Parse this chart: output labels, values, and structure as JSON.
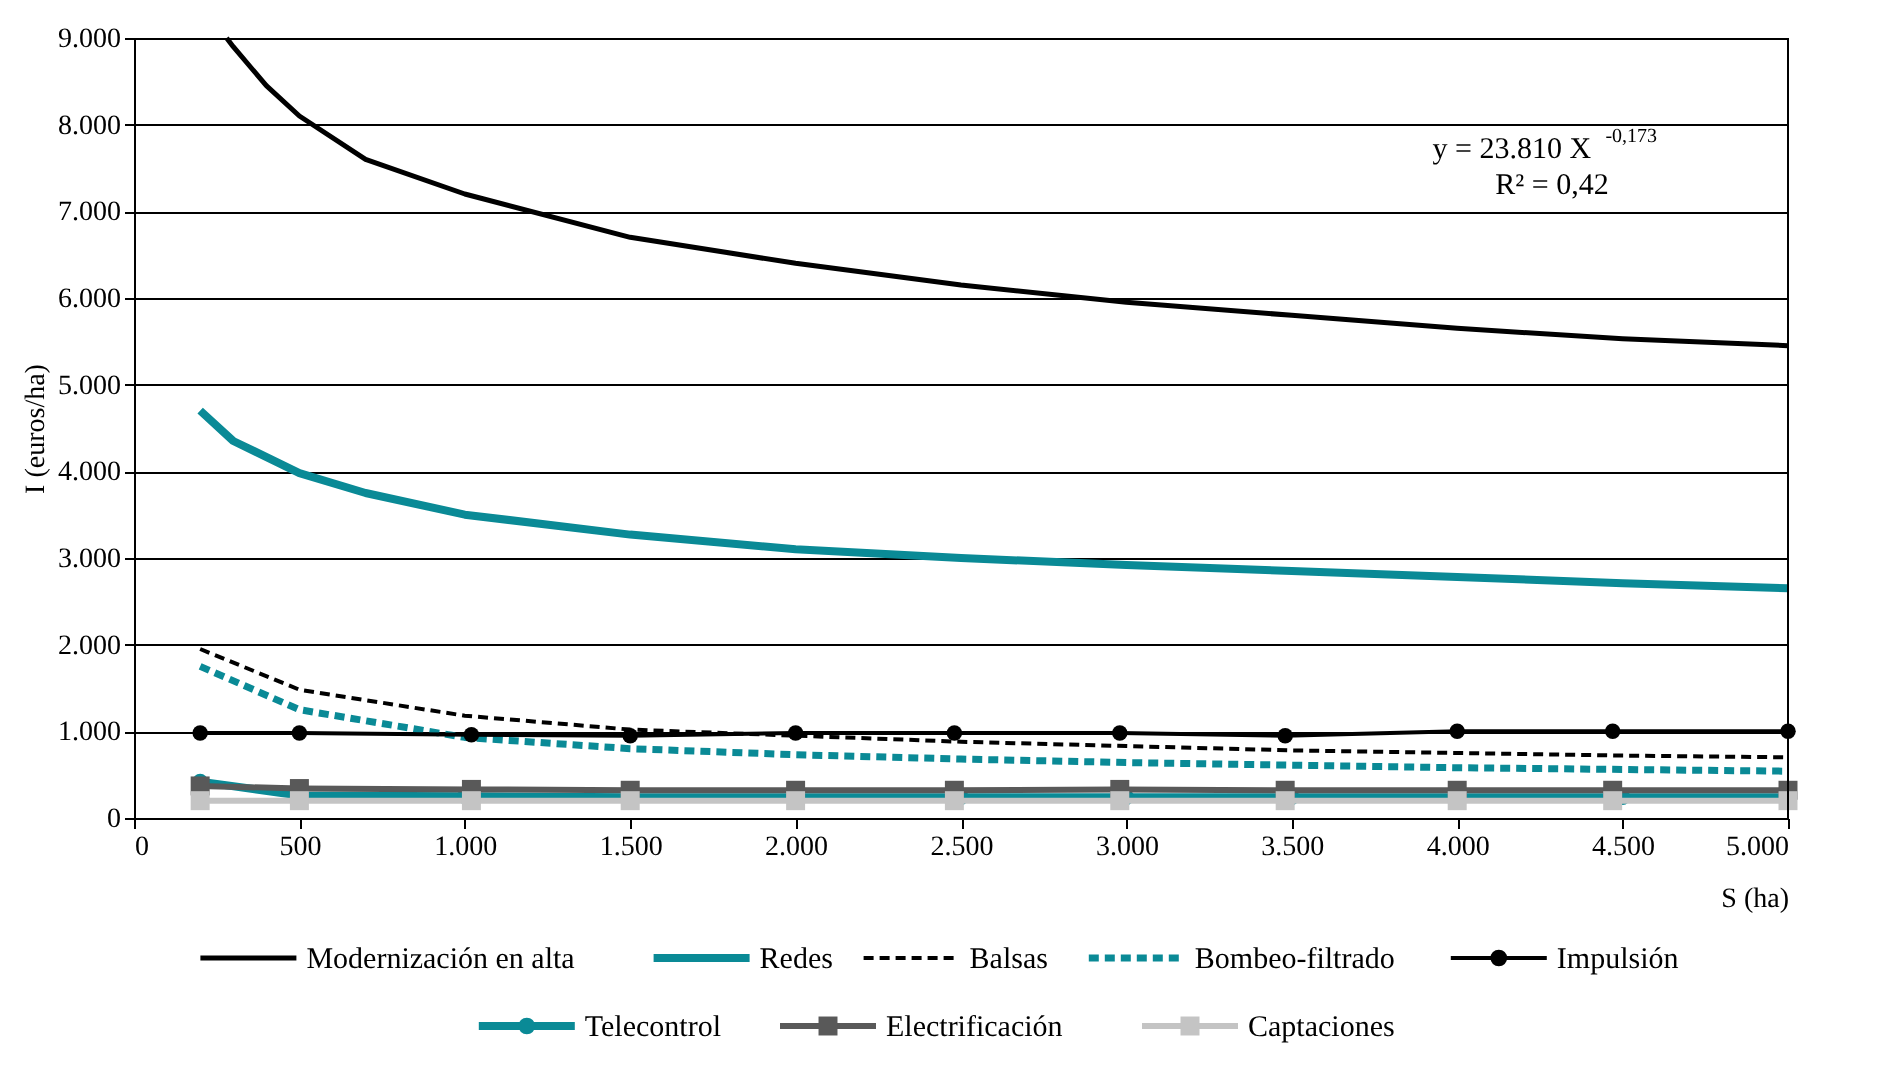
{
  "chart_data": {
    "type": "line",
    "xlabel": "S (ha)",
    "ylabel": "I (euros/ha)",
    "xlim": [
      0,
      5000
    ],
    "ylim": [
      0,
      9000
    ],
    "xticks": [
      0,
      {
        "value": 500,
        "label": "500"
      },
      {
        "value": 1000,
        "label": "1.000"
      },
      {
        "value": 1500,
        "label": "1.500"
      },
      {
        "value": 2000,
        "label": "2.000"
      },
      {
        "value": 2500,
        "label": "2.500"
      },
      {
        "value": 3000,
        "label": "3.000"
      },
      {
        "value": 3500,
        "label": "3.500"
      },
      {
        "value": 4000,
        "label": "4.000"
      },
      {
        "value": 4500,
        "label": "4.500"
      },
      {
        "value": 5000,
        "label": "5.000"
      }
    ],
    "yticks": [
      0,
      {
        "value": 1000,
        "label": "1.000"
      },
      {
        "value": 2000,
        "label": "2.000"
      },
      {
        "value": 3000,
        "label": "3.000"
      },
      {
        "value": 4000,
        "label": "4.000"
      },
      {
        "value": 5000,
        "label": "5.000"
      },
      {
        "value": 6000,
        "label": "6.000"
      },
      {
        "value": 7000,
        "label": "7.000"
      },
      {
        "value": 8000,
        "label": "8.000"
      },
      {
        "value": 9000,
        "label": "9.000"
      }
    ],
    "grid": "y",
    "legend": "bottom",
    "annotations": [
      "y = 23.810 X$^{-0,173}$",
      "R² = 0,42"
    ],
    "series": [
      {
        "name": "Modernización en alta",
        "color": "#000000",
        "line_style": "solid",
        "marker": "none",
        "x": [
          280,
          300,
          400,
          500,
          700,
          1000,
          1500,
          2000,
          2500,
          3000,
          3500,
          4000,
          4500,
          5000
        ],
        "values": [
          9000,
          8900,
          8450,
          8100,
          7600,
          7200,
          6700,
          6400,
          6150,
          5950,
          5800,
          5650,
          5530,
          5450
        ]
      },
      {
        "name": "Redes",
        "color": "#0a8a96",
        "line_style": "solid",
        "marker": "none",
        "x": [
          200,
          300,
          500,
          700,
          1000,
          1500,
          2000,
          2500,
          3000,
          3500,
          4000,
          4500,
          5000
        ],
        "values": [
          4700,
          4350,
          3980,
          3750,
          3500,
          3270,
          3100,
          3000,
          2920,
          2850,
          2780,
          2710,
          2650
        ]
      },
      {
        "name": "Balsas",
        "color": "#000000",
        "line_style": "dashed",
        "marker": "none",
        "x": [
          200,
          500,
          1000,
          1500,
          2000,
          2500,
          3000,
          3500,
          4000,
          4500,
          5000
        ],
        "values": [
          1950,
          1480,
          1180,
          1020,
          950,
          880,
          830,
          780,
          750,
          720,
          700
        ]
      },
      {
        "name": "Bombeo-filtrado",
        "color": "#0a8a96",
        "line_style": "dashed",
        "marker": "none",
        "x": [
          200,
          500,
          1000,
          1500,
          2000,
          2500,
          3000,
          3500,
          4000,
          4500,
          5000
        ],
        "values": [
          1750,
          1250,
          930,
          800,
          730,
          680,
          640,
          610,
          580,
          560,
          540
        ]
      },
      {
        "name": "Impulsión",
        "color": "#000000",
        "line_style": "solid",
        "marker": "circle",
        "x": [
          200,
          500,
          1020,
          1500,
          2000,
          2480,
          2980,
          3480,
          4000,
          4470,
          5000
        ],
        "values": [
          980,
          980,
          960,
          950,
          980,
          980,
          980,
          950,
          1000,
          1000,
          1000
        ]
      },
      {
        "name": "Telecontrol",
        "color": "#0a8a96",
        "line_style": "solid",
        "marker": "circle",
        "x": [
          200,
          500,
          1000,
          1500,
          2000,
          2500,
          3000,
          3500,
          4000,
          4500,
          5000
        ],
        "values": [
          420,
          260,
          250,
          240,
          240,
          240,
          240,
          240,
          240,
          240,
          240
        ]
      },
      {
        "name": "Electrificación",
        "color": "#595959",
        "line_style": "solid",
        "marker": "square",
        "x": [
          200,
          500,
          1020,
          1500,
          2000,
          2480,
          2980,
          3480,
          4000,
          4470,
          5000
        ],
        "values": [
          370,
          340,
          330,
          320,
          320,
          320,
          330,
          320,
          320,
          320,
          320
        ]
      },
      {
        "name": "Captaciones",
        "color": "#c4c4c4",
        "line_style": "solid",
        "marker": "square",
        "x": [
          200,
          500,
          1020,
          1500,
          2000,
          2480,
          2980,
          3480,
          4000,
          4470,
          5000
        ],
        "values": [
          200,
          200,
          200,
          200,
          200,
          200,
          200,
          200,
          200,
          200,
          200
        ]
      }
    ]
  }
}
